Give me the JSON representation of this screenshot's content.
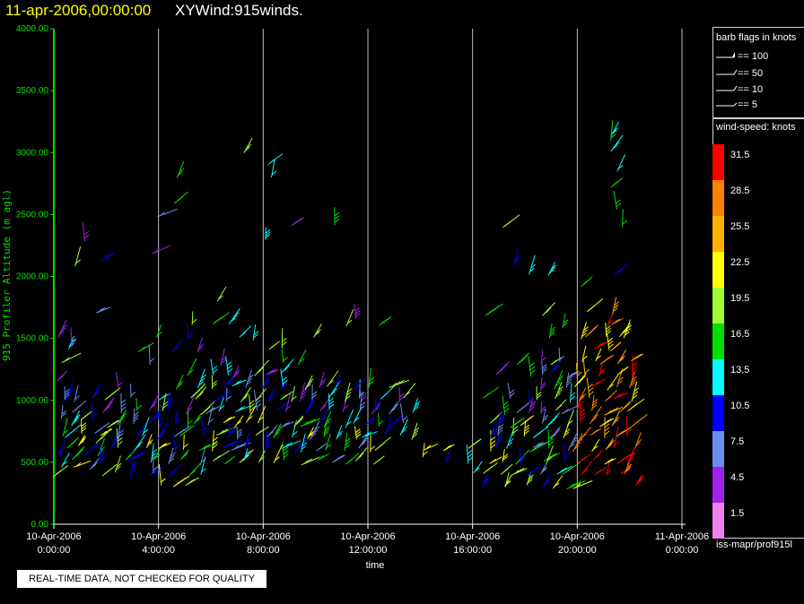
{
  "header": {
    "datetime": "11-apr-2006,00:00:00",
    "product": "XYWind:915winds."
  },
  "qc_notice": "REAL-TIME DATA, NOT CHECKED FOR QUALITY",
  "source_label": "iss-mapr/prof915l",
  "legend": {
    "barb_title": "barb flags in knots",
    "barb_entries": [
      "== 100",
      "== 50",
      "== 10",
      "== 5"
    ],
    "speed_title": "wind-speed: knots",
    "speed_bins": [
      {
        "label": "31.5",
        "color": "#ff0000"
      },
      {
        "label": "28.5",
        "color": "#ff8000"
      },
      {
        "label": "25.5",
        "color": "#ffb000"
      },
      {
        "label": "22.5",
        "color": "#ffff00"
      },
      {
        "label": "19.5",
        "color": "#a0ff30"
      },
      {
        "label": "16.5",
        "color": "#00e000"
      },
      {
        "label": "13.5",
        "color": "#00ffff"
      },
      {
        "label": "10.5",
        "color": "#0000ff"
      },
      {
        "label": "7.5",
        "color": "#6a8ef0"
      },
      {
        "label": "4.5",
        "color": "#a020f0"
      },
      {
        "label": "1.5",
        "color": "#ee82ee"
      }
    ]
  },
  "chart_data": {
    "type": "scatter",
    "xlabel": "time",
    "ylabel": "915 Profiler Altitude (m agl)",
    "ylim": [
      0,
      4000
    ],
    "xlim": [
      "10-Apr-2006 0:00:00",
      "11-Apr-2006 0:00:00"
    ],
    "xtick_labels": [
      [
        "10-Apr-2006",
        "0:00:00"
      ],
      [
        "10-Apr-2006",
        "4:00:00"
      ],
      [
        "10-Apr-2006",
        "8:00:00"
      ],
      [
        "10-Apr-2006",
        "12:00:00"
      ],
      [
        "10-Apr-2006",
        "16:00:00"
      ],
      [
        "10-Apr-2006",
        "20:00:00"
      ],
      [
        "11-Apr-2006",
        "0:00:00"
      ]
    ],
    "ytick_labels": [
      "0.00",
      "500.00",
      "1000.00",
      "1500.00",
      "2000.00",
      "2500.00",
      "3000.00",
      "3500.00",
      "4000.00"
    ],
    "grid": "vertical lines at 4-hour ticks",
    "series": [
      {
        "x": [
          0.2,
          0.2,
          0.2,
          0.2,
          0.2,
          0.2,
          0.2
        ],
        "y": [
          400,
          550,
          700,
          850,
          1000,
          1150,
          1500
        ]
      },
      {
        "x": [
          0.5,
          0.5,
          0.5,
          0.5,
          0.5,
          0.5,
          0.5,
          0.5,
          0.5,
          0.5
        ],
        "y": [
          450,
          500,
          600,
          700,
          800,
          900,
          1000,
          1300,
          1400,
          1450
        ]
      },
      {
        "x": [
          1.0,
          1.0,
          1.0,
          1.0,
          1.0,
          1.0,
          1.0,
          1.0
        ],
        "y": [
          450,
          550,
          650,
          750,
          850,
          1000,
          2100,
          2300
        ]
      },
      {
        "x": [
          1.5,
          1.5,
          1.5,
          1.5,
          1.5,
          1.5,
          1.5
        ],
        "y": [
          450,
          550,
          650,
          750,
          850,
          1000,
          1700
        ]
      },
      {
        "x": [
          2.0,
          2.0,
          2.0,
          2.0,
          2.0,
          2.0,
          2.0,
          2.0
        ],
        "y": [
          400,
          500,
          600,
          700,
          800,
          900,
          1000,
          2150
        ]
      },
      {
        "x": [
          2.5,
          2.5,
          2.5,
          2.5,
          2.5,
          2.5,
          2.5
        ],
        "y": [
          400,
          500,
          600,
          700,
          800,
          900,
          1100
        ]
      },
      {
        "x": [
          3.0,
          3.0,
          3.0,
          3.0,
          3.0,
          3.0,
          3.0,
          3.0
        ],
        "y": [
          400,
          500,
          600,
          700,
          800,
          900,
          1000,
          1400
        ]
      },
      {
        "x": [
          3.5,
          3.5,
          3.5,
          3.5,
          3.5,
          3.5,
          3.5
        ],
        "y": [
          400,
          500,
          600,
          700,
          800,
          900,
          1300
        ]
      },
      {
        "x": [
          4.0,
          4.0,
          4.0,
          4.0,
          4.0,
          4.0,
          4.0,
          4.0,
          4.0,
          4.0,
          4.0
        ],
        "y": [
          300,
          400,
          500,
          600,
          700,
          800,
          900,
          1000,
          1500,
          2200,
          2500
        ]
      },
      {
        "x": [
          4.5,
          4.5,
          4.5,
          4.5,
          4.5,
          4.5,
          4.5,
          4.5,
          4.5,
          4.5,
          4.5
        ],
        "y": [
          300,
          400,
          500,
          600,
          700,
          800,
          900,
          1100,
          1400,
          2600,
          2800
        ]
      },
      {
        "x": [
          5.0,
          5.0,
          5.0,
          5.0,
          5.0,
          5.0,
          5.0,
          5.0,
          5.0,
          5.0
        ],
        "y": [
          300,
          400,
          500,
          600,
          700,
          800,
          900,
          1000,
          1200,
          1500
        ]
      },
      {
        "x": [
          5.5,
          5.5,
          5.5,
          5.5,
          5.5,
          5.5,
          5.5,
          5.5,
          5.5,
          5.5
        ],
        "y": [
          400,
          500,
          600,
          700,
          800,
          900,
          1000,
          1100,
          1400,
          1600
        ]
      },
      {
        "x": [
          6.0,
          6.0,
          6.0,
          6.0,
          6.0,
          6.0,
          6.0,
          6.0,
          6.0,
          6.0
        ],
        "y": [
          500,
          600,
          700,
          800,
          900,
          1000,
          1100,
          1200,
          1600,
          1800
        ]
      },
      {
        "x": [
          6.5,
          6.5,
          6.5,
          6.5,
          6.5,
          6.5,
          6.5,
          6.5,
          6.5,
          6.5
        ],
        "y": [
          500,
          600,
          700,
          800,
          900,
          1000,
          1100,
          1200,
          1300,
          1600
        ]
      },
      {
        "x": [
          7.0,
          7.0,
          7.0,
          7.0,
          7.0,
          7.0,
          7.0,
          7.0,
          7.0
        ],
        "y": [
          500,
          600,
          700,
          800,
          900,
          1000,
          1100,
          1200,
          1500
        ]
      },
      {
        "x": [
          7.5,
          7.5,
          7.5,
          7.5,
          7.5,
          7.5,
          7.5,
          7.5,
          7.5,
          7.5
        ],
        "y": [
          500,
          600,
          700,
          800,
          900,
          1000,
          1100,
          1200,
          1500,
          3000
        ]
      },
      {
        "x": [
          8.0,
          8.0,
          8.0,
          8.0,
          8.0,
          8.0,
          8.0,
          8.0,
          8.0,
          8.0,
          8.0
        ],
        "y": [
          500,
          600,
          700,
          800,
          900,
          1000,
          1100,
          1200,
          1400,
          2300,
          2900
        ]
      },
      {
        "x": [
          8.5,
          8.5,
          8.5,
          8.5,
          8.5,
          8.5,
          8.5,
          8.5,
          8.5,
          8.5
        ],
        "y": [
          500,
          600,
          700,
          800,
          900,
          1000,
          1100,
          1200,
          1400,
          2800
        ]
      },
      {
        "x": [
          9.0,
          9.0,
          9.0,
          9.0,
          9.0,
          9.0,
          9.0,
          9.0,
          9.0
        ],
        "y": [
          500,
          600,
          700,
          800,
          900,
          1000,
          1100,
          1300,
          2400
        ]
      },
      {
        "x": [
          9.5,
          9.5,
          9.5,
          9.5,
          9.5,
          9.5,
          9.5,
          9.5
        ],
        "y": [
          500,
          600,
          700,
          800,
          900,
          1000,
          1100,
          1300
        ]
      },
      {
        "x": [
          10.0,
          10.0,
          10.0,
          10.0,
          10.0,
          10.0,
          10.0,
          10.0
        ],
        "y": [
          500,
          600,
          700,
          800,
          900,
          1000,
          1100,
          1500
        ]
      },
      {
        "x": [
          10.5,
          10.5,
          10.5,
          10.5,
          10.5,
          10.5,
          10.5,
          10.5
        ],
        "y": [
          500,
          600,
          700,
          800,
          900,
          1000,
          1100,
          2400
        ]
      },
      {
        "x": [
          11.0,
          11.0,
          11.0,
          11.0,
          11.0,
          11.0,
          11.0,
          11.0
        ],
        "y": [
          500,
          600,
          700,
          800,
          900,
          1000,
          1100,
          1600
        ]
      },
      {
        "x": [
          11.5,
          11.5,
          11.5,
          11.5,
          11.5,
          11.5,
          11.5,
          11.5
        ],
        "y": [
          500,
          600,
          700,
          800,
          900,
          1000,
          1100,
          1650
        ]
      },
      {
        "x": [
          12.0,
          12.0,
          12.0,
          12.0,
          12.0,
          12.0,
          12.0
        ],
        "y": [
          500,
          600,
          700,
          800,
          900,
          1000,
          1100
        ]
      },
      {
        "x": [
          12.5,
          12.5,
          12.5,
          12.5,
          12.5,
          12.5
        ],
        "y": [
          600,
          700,
          800,
          900,
          1000,
          1600
        ]
      },
      {
        "x": [
          13.0,
          13.0,
          13.0,
          13.0,
          13.0
        ],
        "y": [
          700,
          800,
          900,
          1000,
          1100
        ]
      },
      {
        "x": [
          13.5,
          13.5,
          13.5,
          13.5
        ],
        "y": [
          700,
          800,
          900,
          1000
        ]
      },
      {
        "x": [
          14.0,
          14.0
        ],
        "y": [
          550,
          600
        ]
      },
      {
        "x": [
          15.0,
          15.0
        ],
        "y": [
          500,
          600
        ]
      },
      {
        "x": [
          16.0,
          16.0,
          16.0
        ],
        "y": [
          400,
          500,
          600
        ]
      },
      {
        "x": [
          16.5,
          16.5,
          16.5,
          16.5,
          16.5,
          16.5,
          16.5,
          16.5
        ],
        "y": [
          300,
          400,
          500,
          600,
          700,
          800,
          1000,
          1700
        ]
      },
      {
        "x": [
          17.0,
          17.0,
          17.0,
          17.0,
          17.0,
          17.0,
          17.0,
          17.0,
          17.0
        ],
        "y": [
          300,
          400,
          500,
          600,
          700,
          800,
          900,
          1200,
          2400
        ]
      },
      {
        "x": [
          17.5,
          17.5,
          17.5,
          17.5,
          17.5,
          17.5,
          17.5,
          17.5,
          17.5,
          17.5
        ],
        "y": [
          300,
          400,
          500,
          600,
          700,
          800,
          900,
          1000,
          1300,
          2100
        ]
      },
      {
        "x": [
          18.0,
          18.0,
          18.0,
          18.0,
          18.0,
          18.0,
          18.0,
          18.0,
          18.0,
          18.0
        ],
        "y": [
          300,
          400,
          500,
          600,
          700,
          800,
          900,
          1000,
          1200,
          2000
        ]
      },
      {
        "x": [
          18.5,
          18.5,
          18.5,
          18.5,
          18.5,
          18.5,
          18.5,
          18.5,
          18.5,
          18.5,
          18.5,
          18.5
        ],
        "y": [
          300,
          400,
          500,
          600,
          700,
          800,
          900,
          1000,
          1100,
          1200,
          1300,
          1700
        ]
      },
      {
        "x": [
          19.0,
          19.0,
          19.0,
          19.0,
          19.0,
          19.0,
          19.0,
          19.0,
          19.0,
          19.0,
          19.0,
          19.0,
          19.0
        ],
        "y": [
          300,
          400,
          500,
          600,
          700,
          800,
          900,
          1000,
          1100,
          1200,
          1300,
          1500,
          2000
        ]
      },
      {
        "x": [
          19.5,
          19.5,
          19.5,
          19.5,
          19.5,
          19.5,
          19.5,
          19.5,
          19.5,
          19.5,
          19.5,
          19.5
        ],
        "y": [
          300,
          400,
          500,
          600,
          700,
          800,
          900,
          1000,
          1100,
          1200,
          1300,
          1600
        ]
      },
      {
        "x": [
          20.0,
          20.0,
          20.0,
          20.0,
          20.0,
          20.0,
          20.0,
          20.0,
          20.0,
          20.0,
          20.0,
          20.0,
          20.0
        ],
        "y": [
          300,
          400,
          500,
          600,
          700,
          800,
          900,
          1000,
          1100,
          1200,
          1300,
          1500,
          1900
        ]
      },
      {
        "x": [
          20.5,
          20.5,
          20.5,
          20.5,
          20.5,
          20.5,
          20.5,
          20.5,
          20.5,
          20.5,
          20.5,
          20.5,
          20.5
        ],
        "y": [
          400,
          500,
          600,
          700,
          800,
          900,
          1000,
          1100,
          1200,
          1300,
          1400,
          1500,
          1700
        ]
      },
      {
        "x": [
          21.0,
          21.0,
          21.0,
          21.0,
          21.0,
          21.0,
          21.0,
          21.0,
          21.0,
          21.0,
          21.0,
          21.0,
          21.0
        ],
        "y": [
          400,
          500,
          600,
          700,
          800,
          900,
          1000,
          1100,
          1200,
          1300,
          1400,
          1500,
          1600
        ]
      },
      {
        "x": [
          21.5,
          21.5,
          21.5,
          21.5,
          21.5,
          21.5,
          21.5,
          21.5,
          21.5,
          21.5,
          21.5,
          21.5,
          21.5,
          21.5,
          21.5,
          21.5,
          21.5,
          21.5,
          21.5,
          21.5,
          21.5,
          21.5
        ],
        "y": [
          400,
          500,
          600,
          700,
          800,
          900,
          1000,
          1100,
          1200,
          1300,
          1400,
          1500,
          1600,
          1700,
          2000,
          2400,
          2550,
          2700,
          2850,
          3000,
          3100,
          3150
        ]
      },
      {
        "x": [
          22.0,
          22.0,
          22.0,
          22.0,
          22.0,
          22.0,
          22.0,
          22.0,
          22.0,
          22.0,
          22.0,
          22.0
        ],
        "y": [
          300,
          400,
          500,
          600,
          700,
          800,
          900,
          1000,
          1100,
          1200,
          1300,
          1500
        ]
      }
    ]
  }
}
